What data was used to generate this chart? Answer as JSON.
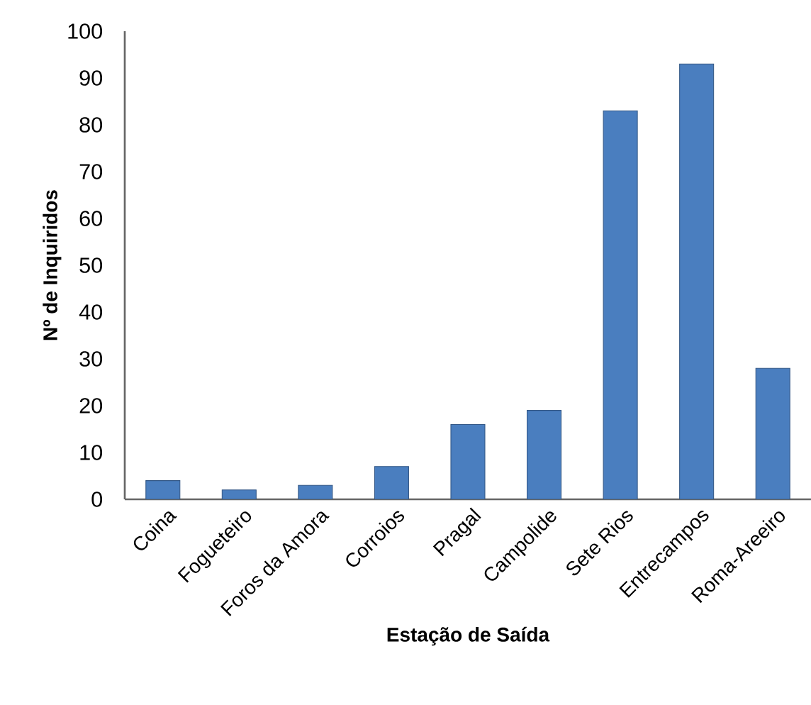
{
  "chart_data": {
    "type": "bar",
    "xlabel": "Estação de Saída",
    "ylabel": "Nº de Inquiridos",
    "categories": [
      "Coina",
      "Fogueteiro",
      "Foros da Amora",
      "Corroios",
      "Pragal",
      "Campolide",
      "Sete Rios",
      "Entrecampos",
      "Roma-Areeiro"
    ],
    "values": [
      4,
      2,
      3,
      7,
      16,
      19,
      83,
      93,
      28
    ],
    "color": "#4a7ebf",
    "ylim": [
      0,
      100
    ],
    "yticks": [
      0,
      10,
      20,
      30,
      40,
      50,
      60,
      70,
      80,
      90,
      100
    ]
  }
}
